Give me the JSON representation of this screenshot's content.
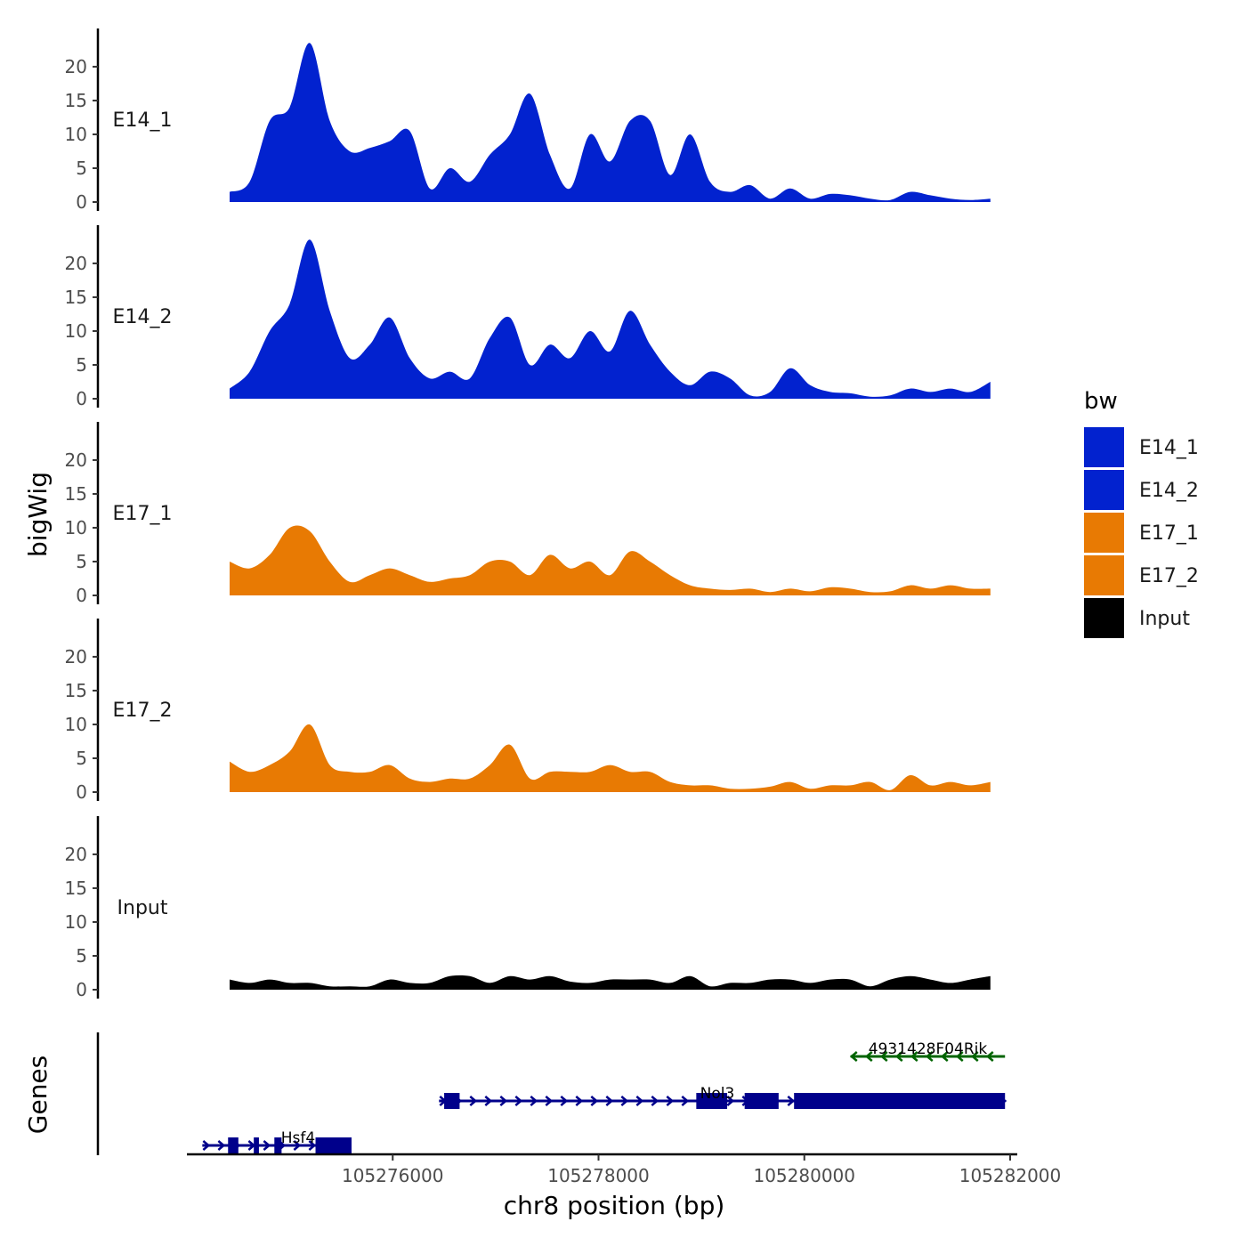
{
  "chart_data": {
    "type": "area",
    "ylabel": "bigWig",
    "xlabel": "chr8 position (bp)",
    "genes_label": "Genes",
    "x_range": [
      105274300,
      105282000
    ],
    "ylim": [
      0,
      25
    ],
    "y_ticks": [
      "0",
      "5",
      "10",
      "15",
      "20"
    ],
    "x_ticks": [
      {
        "label": "105276000",
        "value": 105276000
      },
      {
        "label": "105278000",
        "value": 105278000
      },
      {
        "label": "105280000",
        "value": 105280000
      },
      {
        "label": "105282000",
        "value": 105282000
      }
    ],
    "legend_title": "bw",
    "colors": {
      "E14_1": "#0222cf",
      "E14_2": "#0222cf",
      "E17_1": "#e87a03",
      "E17_2": "#e87a03",
      "Input": "#000000"
    },
    "series": [
      {
        "name": "E14_1",
        "x": [
          105274300,
          105274500,
          105274700,
          105274900,
          105275100,
          105275300,
          105275500,
          105275700,
          105275900,
          105276100,
          105276300,
          105276500,
          105276700,
          105276900,
          105277100,
          105277300,
          105277500,
          105277700,
          105277900,
          105278100,
          105278300,
          105278500,
          105278700,
          105278900,
          105279100,
          105279300,
          105279500,
          105279700,
          105279900,
          105280100,
          105280300,
          105280500,
          105280700,
          105280900,
          105281100,
          105281300,
          105281500,
          105281700,
          105281900
        ],
        "values": [
          1.5,
          3,
          12,
          14,
          23.5,
          12,
          7.5,
          8,
          9,
          10.5,
          2,
          5,
          3,
          7,
          10,
          16,
          7,
          2,
          10,
          6,
          12,
          12,
          4,
          10,
          3,
          1.5,
          2.5,
          0.5,
          2,
          0.5,
          1.2,
          1,
          0.5,
          0.3,
          1.5,
          1,
          0.5,
          0.3,
          0.5
        ]
      },
      {
        "name": "E14_2",
        "x": [
          105274300,
          105274500,
          105274700,
          105274900,
          105275100,
          105275300,
          105275500,
          105275700,
          105275900,
          105276100,
          105276300,
          105276500,
          105276700,
          105276900,
          105277100,
          105277300,
          105277500,
          105277700,
          105277900,
          105278100,
          105278300,
          105278500,
          105278700,
          105278900,
          105279100,
          105279300,
          105279500,
          105279700,
          105279900,
          105280100,
          105280300,
          105280500,
          105280700,
          105280900,
          105281100,
          105281300,
          105281500,
          105281700,
          105281900
        ],
        "values": [
          1.5,
          4,
          10,
          14,
          23.5,
          13,
          6,
          8,
          12,
          6,
          3,
          4,
          3,
          9,
          12,
          5,
          8,
          6,
          10,
          7,
          13,
          8,
          4,
          2,
          4,
          3,
          0.5,
          1,
          4.5,
          2,
          1,
          0.8,
          0.3,
          0.5,
          1.5,
          1,
          1.5,
          1,
          2.5
        ]
      },
      {
        "name": "E17_1",
        "x": [
          105274300,
          105274500,
          105274700,
          105274900,
          105275100,
          105275300,
          105275500,
          105275700,
          105275900,
          105276100,
          105276300,
          105276500,
          105276700,
          105276900,
          105277100,
          105277300,
          105277500,
          105277700,
          105277900,
          105278100,
          105278300,
          105278500,
          105278700,
          105278900,
          105279100,
          105279300,
          105279500,
          105279700,
          105279900,
          105280100,
          105280300,
          105280500,
          105280700,
          105280900,
          105281100,
          105281300,
          105281500,
          105281700,
          105281900
        ],
        "values": [
          5,
          4,
          6,
          10,
          9.5,
          5,
          2,
          3,
          4,
          3,
          2,
          2.5,
          3,
          5,
          5,
          3,
          6,
          4,
          5,
          3,
          6.5,
          5,
          3,
          1.5,
          1,
          0.8,
          1,
          0.5,
          1,
          0.6,
          1.2,
          1,
          0.5,
          0.6,
          1.5,
          1,
          1.5,
          1,
          1
        ]
      },
      {
        "name": "E17_2",
        "x": [
          105274300,
          105274500,
          105274700,
          105274900,
          105275100,
          105275300,
          105275500,
          105275700,
          105275900,
          105276100,
          105276300,
          105276500,
          105276700,
          105276900,
          105277100,
          105277300,
          105277500,
          105277700,
          105277900,
          105278100,
          105278300,
          105278500,
          105278700,
          105278900,
          105279100,
          105279300,
          105279500,
          105279700,
          105279900,
          105280100,
          105280300,
          105280500,
          105280700,
          105280900,
          105281100,
          105281300,
          105281500,
          105281700,
          105281900
        ],
        "values": [
          4.5,
          3,
          4,
          6,
          10,
          4,
          3,
          3,
          4,
          2,
          1.5,
          2,
          2,
          4,
          7,
          2,
          3,
          3,
          3,
          4,
          3,
          3,
          1.5,
          1,
          1,
          0.5,
          0.5,
          0.8,
          1.5,
          0.5,
          1,
          1,
          1.5,
          0.3,
          2.5,
          1,
          1.5,
          1,
          1.5
        ]
      },
      {
        "name": "Input",
        "x": [
          105274300,
          105274500,
          105274700,
          105274900,
          105275100,
          105275300,
          105275500,
          105275700,
          105275900,
          105276100,
          105276300,
          105276500,
          105276700,
          105276900,
          105277100,
          105277300,
          105277500,
          105277700,
          105277900,
          105278100,
          105278300,
          105278500,
          105278700,
          105278900,
          105279100,
          105279300,
          105279500,
          105279700,
          105279900,
          105280100,
          105280300,
          105280500,
          105280700,
          105280900,
          105281100,
          105281300,
          105281500,
          105281700,
          105281900
        ],
        "values": [
          1.5,
          1,
          1.5,
          1,
          1,
          0.5,
          0.5,
          0.5,
          1.5,
          1,
          1,
          2,
          2,
          1,
          2,
          1.5,
          2,
          1.2,
          1,
          1.5,
          1.5,
          1.5,
          1,
          2,
          0.5,
          1,
          1,
          1.5,
          1.5,
          1,
          1.5,
          1.5,
          0.5,
          1.5,
          2,
          1.5,
          1,
          1.5,
          2
        ]
      }
    ],
    "genes": [
      {
        "name": "4931428F04Rik",
        "strand": "-",
        "row": 0,
        "color": "#006400",
        "start": 105280450,
        "end": 105281950,
        "exons": []
      },
      {
        "name": "Nol3",
        "strand": "+",
        "row": 1,
        "color": "#00008b",
        "start": 105276450,
        "end": 105281950,
        "exons": [
          [
            105276500,
            105276650
          ],
          [
            105278950,
            105279250
          ],
          [
            105279420,
            105279750
          ],
          [
            105279900,
            105281950
          ]
        ]
      },
      {
        "name": "Hsf4",
        "strand": "+",
        "row": 2,
        "color": "#00008b",
        "start": 105274150,
        "end": 105275600,
        "exons": [
          [
            105274400,
            105274500
          ],
          [
            105274650,
            105274700
          ],
          [
            105274850,
            105274920
          ],
          [
            105275250,
            105275600
          ]
        ]
      }
    ]
  }
}
